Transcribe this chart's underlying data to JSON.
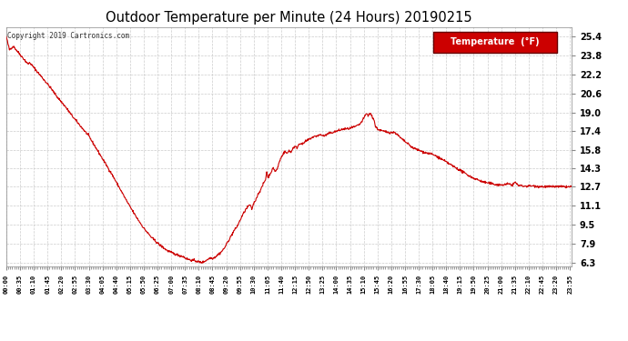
{
  "title": "Outdoor Temperature per Minute (24 Hours) 20190215",
  "copyright_text": "Copyright 2019 Cartronics.com",
  "legend_label": "Temperature  (°F)",
  "legend_bg": "#cc0000",
  "legend_text_color": "#ffffff",
  "line_color": "#cc0000",
  "bg_color": "#ffffff",
  "plot_bg_color": "#ffffff",
  "grid_color": "#c0c0c0",
  "title_color": "#000000",
  "yticks": [
    6.3,
    7.9,
    9.5,
    11.1,
    12.7,
    14.3,
    15.8,
    17.4,
    19.0,
    20.6,
    22.2,
    23.8,
    25.4
  ],
  "ylim": [
    6.0,
    26.2
  ],
  "total_minutes": 1440,
  "keypoints": [
    [
      0,
      25.4
    ],
    [
      8,
      24.3
    ],
    [
      18,
      24.6
    ],
    [
      30,
      24.1
    ],
    [
      45,
      23.5
    ],
    [
      55,
      23.1
    ],
    [
      60,
      23.2
    ],
    [
      70,
      22.8
    ],
    [
      90,
      22.0
    ],
    [
      110,
      21.2
    ],
    [
      130,
      20.3
    ],
    [
      150,
      19.5
    ],
    [
      170,
      18.6
    ],
    [
      190,
      17.8
    ],
    [
      210,
      17.0
    ],
    [
      230,
      15.9
    ],
    [
      250,
      14.8
    ],
    [
      270,
      13.7
    ],
    [
      290,
      12.5
    ],
    [
      310,
      11.3
    ],
    [
      330,
      10.2
    ],
    [
      350,
      9.2
    ],
    [
      370,
      8.4
    ],
    [
      390,
      7.8
    ],
    [
      410,
      7.3
    ],
    [
      430,
      7.0
    ],
    [
      450,
      6.8
    ],
    [
      460,
      6.6
    ],
    [
      470,
      6.5
    ],
    [
      480,
      6.45
    ],
    [
      490,
      6.35
    ],
    [
      495,
      6.3
    ],
    [
      500,
      6.32
    ],
    [
      505,
      6.4
    ],
    [
      510,
      6.5
    ],
    [
      515,
      6.6
    ],
    [
      520,
      6.7
    ],
    [
      525,
      6.65
    ],
    [
      530,
      6.72
    ],
    [
      535,
      6.85
    ],
    [
      540,
      7.0
    ],
    [
      545,
      7.1
    ],
    [
      550,
      7.3
    ],
    [
      555,
      7.5
    ],
    [
      560,
      7.8
    ],
    [
      565,
      8.1
    ],
    [
      570,
      8.4
    ],
    [
      575,
      8.7
    ],
    [
      580,
      9.0
    ],
    [
      585,
      9.2
    ],
    [
      590,
      9.5
    ],
    [
      600,
      10.2
    ],
    [
      610,
      10.8
    ],
    [
      620,
      11.2
    ],
    [
      625,
      10.8
    ],
    [
      630,
      11.3
    ],
    [
      635,
      11.6
    ],
    [
      640,
      12.0
    ],
    [
      645,
      12.3
    ],
    [
      650,
      12.6
    ],
    [
      655,
      13.0
    ],
    [
      660,
      13.3
    ],
    [
      663,
      14.0
    ],
    [
      666,
      13.5
    ],
    [
      670,
      13.7
    ],
    [
      675,
      14.0
    ],
    [
      680,
      14.3
    ],
    [
      685,
      14.0
    ],
    [
      690,
      14.2
    ],
    [
      695,
      14.8
    ],
    [
      700,
      15.2
    ],
    [
      705,
      15.5
    ],
    [
      710,
      15.7
    ],
    [
      715,
      15.5
    ],
    [
      720,
      15.8
    ],
    [
      725,
      15.6
    ],
    [
      730,
      16.0
    ],
    [
      735,
      16.1
    ],
    [
      740,
      16.0
    ],
    [
      745,
      16.3
    ],
    [
      750,
      16.4
    ],
    [
      755,
      16.3
    ],
    [
      760,
      16.5
    ],
    [
      765,
      16.6
    ],
    [
      770,
      16.7
    ],
    [
      775,
      16.8
    ],
    [
      780,
      16.9
    ],
    [
      790,
      17.0
    ],
    [
      800,
      17.1
    ],
    [
      810,
      17.0
    ],
    [
      820,
      17.2
    ],
    [
      830,
      17.3
    ],
    [
      840,
      17.4
    ],
    [
      850,
      17.5
    ],
    [
      860,
      17.6
    ],
    [
      870,
      17.6
    ],
    [
      880,
      17.7
    ],
    [
      890,
      17.8
    ],
    [
      900,
      18.0
    ],
    [
      905,
      18.2
    ],
    [
      910,
      18.5
    ],
    [
      915,
      18.8
    ],
    [
      918,
      18.9
    ],
    [
      921,
      18.7
    ],
    [
      925,
      18.9
    ],
    [
      928,
      18.85
    ],
    [
      932,
      18.6
    ],
    [
      936,
      18.4
    ],
    [
      940,
      17.8
    ],
    [
      945,
      17.6
    ],
    [
      950,
      17.5
    ],
    [
      960,
      17.4
    ],
    [
      975,
      17.3
    ],
    [
      990,
      17.3
    ],
    [
      1005,
      16.8
    ],
    [
      1020,
      16.4
    ],
    [
      1035,
      16.0
    ],
    [
      1050,
      15.8
    ],
    [
      1065,
      15.6
    ],
    [
      1080,
      15.5
    ],
    [
      1095,
      15.3
    ],
    [
      1110,
      15.0
    ],
    [
      1125,
      14.7
    ],
    [
      1140,
      14.4
    ],
    [
      1155,
      14.1
    ],
    [
      1170,
      13.8
    ],
    [
      1185,
      13.5
    ],
    [
      1200,
      13.3
    ],
    [
      1215,
      13.1
    ],
    [
      1230,
      13.0
    ],
    [
      1245,
      12.9
    ],
    [
      1260,
      12.85
    ],
    [
      1280,
      12.95
    ],
    [
      1290,
      12.85
    ],
    [
      1295,
      13.1
    ],
    [
      1305,
      12.8
    ],
    [
      1310,
      12.8
    ],
    [
      1320,
      12.75
    ],
    [
      1340,
      12.78
    ],
    [
      1360,
      12.72
    ],
    [
      1380,
      12.7
    ],
    [
      1400,
      12.72
    ],
    [
      1420,
      12.7
    ],
    [
      1439,
      12.7
    ]
  ]
}
